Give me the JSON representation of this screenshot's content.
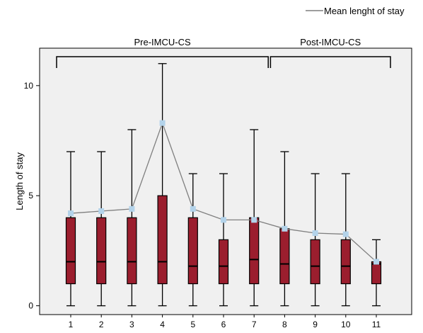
{
  "chart_data": {
    "type": "box",
    "title": "",
    "xlabel": "",
    "ylabel": "Length of stay",
    "ylim": [
      -0.4,
      11.7
    ],
    "yticks": [
      "0",
      "5",
      "10"
    ],
    "grid": false,
    "legend": {
      "placement": "top-right",
      "entries": [
        "Mean lenght of stay"
      ]
    },
    "groups": [
      {
        "label": "Pre-IMCU-CS",
        "from": "1",
        "to": "7"
      },
      {
        "label": "Post-IMCU-CS",
        "from": "8",
        "to": "11"
      }
    ],
    "categories": [
      "1",
      "2",
      "3",
      "4",
      "5",
      "6",
      "7",
      "8",
      "9",
      "10",
      "11"
    ],
    "boxes": [
      {
        "min": 0,
        "q1": 1,
        "median": 2,
        "q3": 4,
        "max": 7
      },
      {
        "min": 0,
        "q1": 1,
        "median": 2,
        "q3": 4,
        "max": 7
      },
      {
        "min": 0,
        "q1": 1,
        "median": 2,
        "q3": 4,
        "max": 8
      },
      {
        "min": 0,
        "q1": 1,
        "median": 2,
        "q3": 5,
        "max": 11
      },
      {
        "min": 0,
        "q1": 1,
        "median": 1.8,
        "q3": 4,
        "max": 6
      },
      {
        "min": 0,
        "q1": 1,
        "median": 1.8,
        "q3": 3,
        "max": 6
      },
      {
        "min": 0,
        "q1": 1,
        "median": 2.1,
        "q3": 4,
        "max": 8
      },
      {
        "min": 0,
        "q1": 1,
        "median": 1.9,
        "q3": 3.5,
        "max": 7
      },
      {
        "min": 0,
        "q1": 1,
        "median": 1.8,
        "q3": 3,
        "max": 6
      },
      {
        "min": 0,
        "q1": 1,
        "median": 1.8,
        "q3": 3,
        "max": 6
      },
      {
        "min": 0,
        "q1": 1,
        "median": 1.9,
        "q3": 2,
        "max": 3
      }
    ],
    "series": [
      {
        "name": "Mean lenght of stay",
        "values": [
          4.2,
          4.3,
          4.4,
          8.3,
          4.4,
          3.9,
          3.9,
          3.5,
          3.3,
          3.25,
          2.0
        ]
      }
    ],
    "colors": {
      "box": "#9b1e2e",
      "mean_line": "#7f7f7f",
      "mean_marker": "#b3d3ea",
      "plot_bg": "#f0f0f0"
    }
  }
}
